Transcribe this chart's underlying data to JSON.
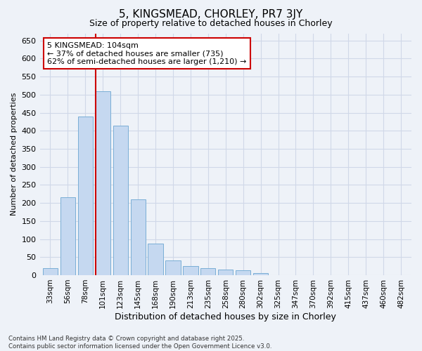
{
  "title": "5, KINGSMEAD, CHORLEY, PR7 3JY",
  "subtitle": "Size of property relative to detached houses in Chorley",
  "xlabel": "Distribution of detached houses by size in Chorley",
  "ylabel": "Number of detached properties",
  "footnote": "Contains HM Land Registry data © Crown copyright and database right 2025.\nContains public sector information licensed under the Open Government Licence v3.0.",
  "categories": [
    "33sqm",
    "56sqm",
    "78sqm",
    "101sqm",
    "123sqm",
    "145sqm",
    "168sqm",
    "190sqm",
    "213sqm",
    "235sqm",
    "258sqm",
    "280sqm",
    "302sqm",
    "325sqm",
    "347sqm",
    "370sqm",
    "392sqm",
    "415sqm",
    "437sqm",
    "460sqm",
    "482sqm"
  ],
  "values": [
    20,
    215,
    440,
    510,
    415,
    210,
    88,
    40,
    25,
    20,
    15,
    13,
    5,
    0,
    0,
    0,
    0,
    0,
    0,
    0,
    0
  ],
  "bar_color": "#c5d8f0",
  "bar_edge_color": "#7aaed6",
  "grid_color": "#d0d8e8",
  "background_color": "#eef2f8",
  "annotation_text": "5 KINGSMEAD: 104sqm\n← 37% of detached houses are smaller (735)\n62% of semi-detached houses are larger (1,210) →",
  "annotation_box_color": "#ffffff",
  "annotation_box_edge": "#cc0000",
  "vline_index": 3,
  "vline_color": "#cc0000",
  "ylim": [
    0,
    670
  ],
  "yticks": [
    0,
    50,
    100,
    150,
    200,
    250,
    300,
    350,
    400,
    450,
    500,
    550,
    600,
    650
  ]
}
